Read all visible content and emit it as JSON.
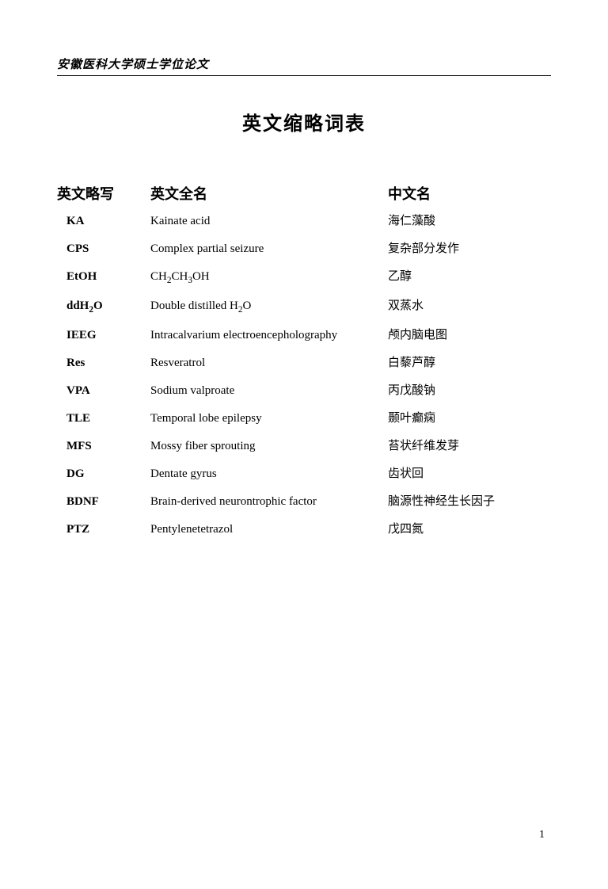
{
  "header": "安徽医科大学硕士学位论文",
  "title": "英文缩略词表",
  "columns": {
    "col1": "英文略写",
    "col2": "英文全名",
    "col3": "中文名"
  },
  "rows": [
    {
      "abbr": "KA",
      "full": "Kainate acid",
      "chinese": "海仁藻酸"
    },
    {
      "abbr": "CPS",
      "full": "Complex partial seizure",
      "chinese": "复杂部分发作"
    },
    {
      "abbr": "EtOH",
      "full": "CH₂CH₃OH",
      "chinese": "乙醇"
    },
    {
      "abbr": "ddH₂O",
      "full": "Double distilled H₂O",
      "chinese": "双蒸水"
    },
    {
      "abbr": "IEEG",
      "full": "Intracalvarium electroencepholography",
      "chinese": "颅内脑电图"
    },
    {
      "abbr": "Res",
      "full": "Resveratrol",
      "chinese": "白藜芦醇"
    },
    {
      "abbr": "VPA",
      "full": "Sodium valproate",
      "chinese": "丙戊酸钠"
    },
    {
      "abbr": "TLE",
      "full": "Temporal lobe epilepsy",
      "chinese": "颞叶癫痫"
    },
    {
      "abbr": "MFS",
      "full": "Mossy fiber sprouting",
      "chinese": "苔状纤维发芽"
    },
    {
      "abbr": "DG",
      "full": "Dentate gyrus",
      "chinese": "齿状回"
    },
    {
      "abbr": "BDNF",
      "full": "Brain-derived neurontrophic factor",
      "chinese": "脑源性神经生长因子"
    },
    {
      "abbr": "PTZ",
      "full": "Pentylenetetrazol",
      "chinese": "戊四氮"
    }
  ],
  "pageNumber": "1"
}
